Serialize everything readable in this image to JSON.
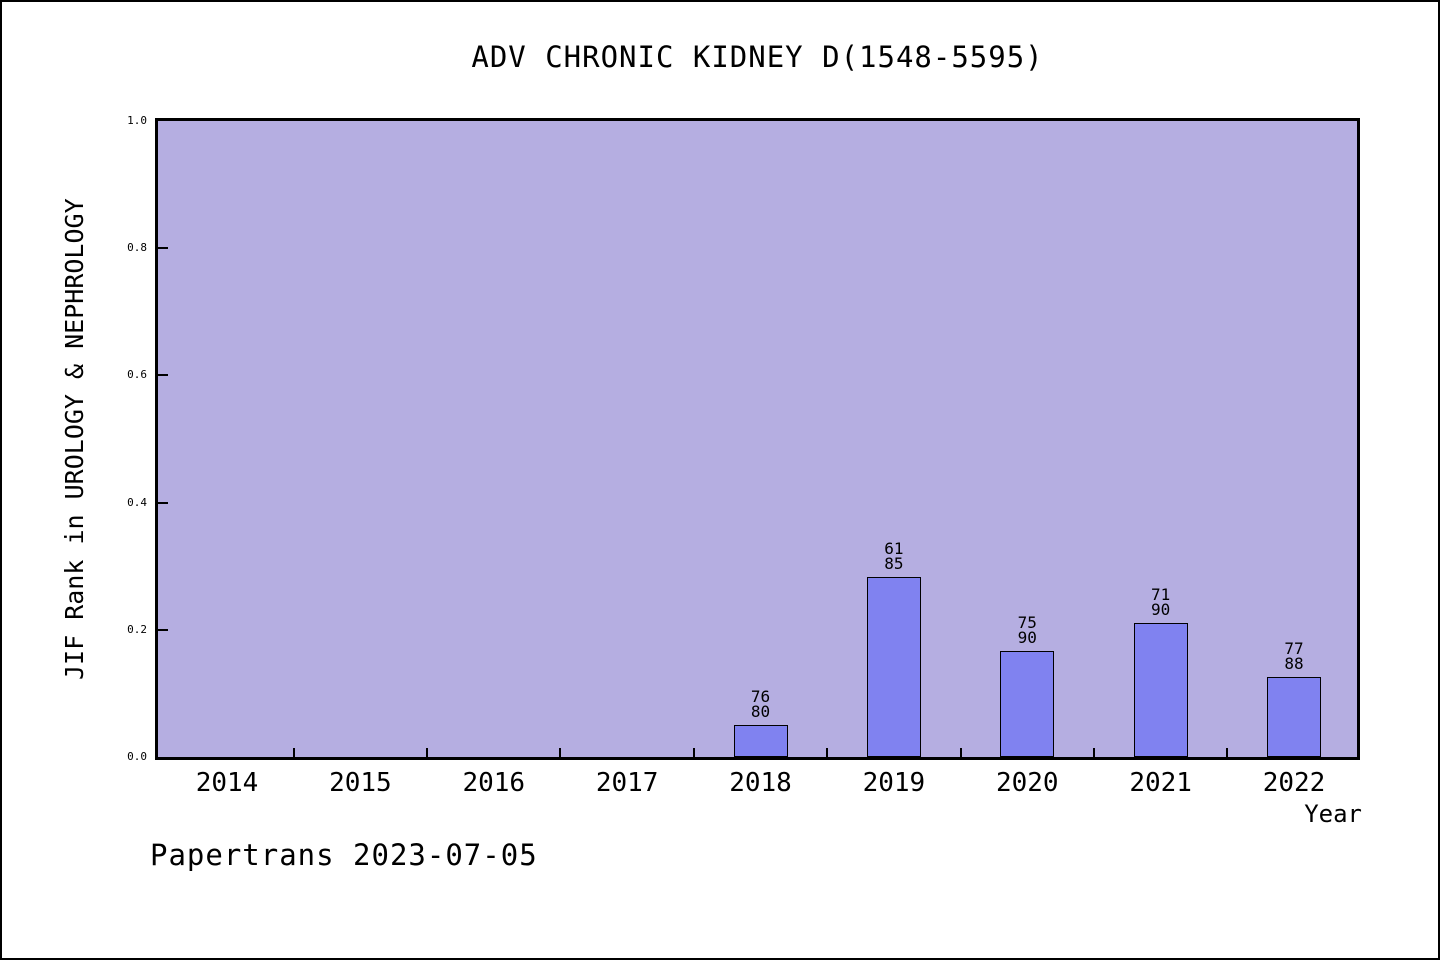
{
  "watermark": "Papertrans 2023-07-05",
  "chart_data": {
    "type": "bar",
    "title": "ADV CHRONIC KIDNEY D(1548-5595)",
    "xlabel": "Year",
    "ylabel": "JIF Rank in UROLOGY & NEPHROLOGY",
    "categories": [
      "2014",
      "2015",
      "2016",
      "2017",
      "2018",
      "2019",
      "2020",
      "2021",
      "2022"
    ],
    "ylim": [
      0.0,
      1.0
    ],
    "ytick_labels": [
      "0.0",
      "0.2",
      "0.4",
      "0.6",
      "0.8",
      "1.0"
    ],
    "grid": false,
    "legend_position": "none",
    "bars": [
      {
        "category": "2018",
        "rank": "76",
        "total": "80",
        "value": 0.05
      },
      {
        "category": "2019",
        "rank": "61",
        "total": "85",
        "value": 0.2824
      },
      {
        "category": "2020",
        "rank": "75",
        "total": "90",
        "value": 0.1667
      },
      {
        "category": "2021",
        "rank": "71",
        "total": "90",
        "value": 0.2111
      },
      {
        "category": "2022",
        "rank": "77",
        "total": "88",
        "value": 0.125
      }
    ],
    "annotation_format": "rank over total, stacked above bar",
    "colors": {
      "plot_background": "#b5aee1",
      "bar_fill": "#8082f0",
      "bar_edge": "#000000",
      "text": "#000000"
    }
  }
}
